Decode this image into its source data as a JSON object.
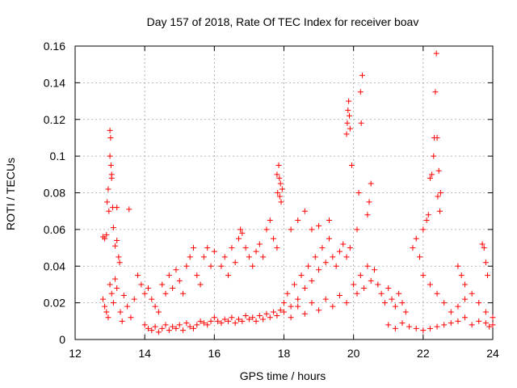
{
  "chart_data": {
    "type": "scatter",
    "title": "Day 157 of 2018, Rate Of TEC Index for receiver boav",
    "xlabel": "GPS time / hours",
    "ylabel": "ROTI / TECUs",
    "xlim": [
      12,
      24
    ],
    "ylim": [
      0,
      0.16
    ],
    "xticks": [
      12,
      14,
      16,
      18,
      20,
      22,
      24
    ],
    "xtick_labels": [
      "12",
      "14",
      "16",
      "18",
      "20",
      "22",
      "24"
    ],
    "yticks": [
      0,
      0.02,
      0.04,
      0.06,
      0.08,
      0.1,
      0.12,
      0.14,
      0.16
    ],
    "ytick_labels": [
      "0",
      "0.02",
      "0.04",
      "0.06",
      "0.08",
      "0.1",
      "0.12",
      "0.14",
      "0.16"
    ],
    "grid": true,
    "marker": "+",
    "color": "#ff0000",
    "series": [
      {
        "name": "ROTI",
        "points": [
          [
            12.8,
            0.056
          ],
          [
            12.85,
            0.055
          ],
          [
            12.9,
            0.057
          ],
          [
            12.92,
            0.075
          ],
          [
            12.95,
            0.082
          ],
          [
            12.97,
            0.07
          ],
          [
            13.0,
            0.1
          ],
          [
            13.0,
            0.114
          ],
          [
            13.02,
            0.11
          ],
          [
            13.03,
            0.095
          ],
          [
            13.05,
            0.09
          ],
          [
            13.08,
            0.072
          ],
          [
            13.1,
            0.061
          ],
          [
            13.15,
            0.051
          ],
          [
            13.2,
            0.054
          ],
          [
            13.25,
            0.045
          ],
          [
            13.28,
            0.042
          ],
          [
            13.2,
            0.072
          ],
          [
            13.55,
            0.071
          ],
          [
            13.05,
            0.088
          ],
          [
            12.8,
            0.022
          ],
          [
            12.85,
            0.018
          ],
          [
            12.9,
            0.015
          ],
          [
            12.95,
            0.012
          ],
          [
            13.0,
            0.03
          ],
          [
            13.05,
            0.025
          ],
          [
            13.1,
            0.02
          ],
          [
            13.15,
            0.033
          ],
          [
            13.2,
            0.028
          ],
          [
            13.3,
            0.015
          ],
          [
            13.35,
            0.01
          ],
          [
            13.4,
            0.024
          ],
          [
            13.5,
            0.018
          ],
          [
            13.6,
            0.012
          ],
          [
            13.7,
            0.022
          ],
          [
            13.8,
            0.035
          ],
          [
            13.9,
            0.03
          ],
          [
            14.0,
            0.025
          ],
          [
            14.1,
            0.028
          ],
          [
            14.2,
            0.022
          ],
          [
            14.3,
            0.018
          ],
          [
            14.4,
            0.015
          ],
          [
            14.5,
            0.03
          ],
          [
            14.6,
            0.025
          ],
          [
            14.7,
            0.035
          ],
          [
            14.8,
            0.028
          ],
          [
            14.9,
            0.038
          ],
          [
            15.0,
            0.032
          ],
          [
            15.1,
            0.025
          ],
          [
            15.2,
            0.04
          ],
          [
            15.3,
            0.045
          ],
          [
            15.4,
            0.05
          ],
          [
            15.5,
            0.035
          ],
          [
            15.6,
            0.03
          ],
          [
            15.7,
            0.045
          ],
          [
            15.8,
            0.05
          ],
          [
            15.9,
            0.04
          ],
          [
            16.0,
            0.048
          ],
          [
            14.0,
            0.008
          ],
          [
            14.1,
            0.006
          ],
          [
            14.2,
            0.005
          ],
          [
            14.3,
            0.007
          ],
          [
            14.4,
            0.004
          ],
          [
            14.5,
            0.006
          ],
          [
            14.6,
            0.008
          ],
          [
            14.7,
            0.005
          ],
          [
            14.8,
            0.007
          ],
          [
            14.9,
            0.006
          ],
          [
            15.0,
            0.008
          ],
          [
            15.1,
            0.005
          ],
          [
            15.2,
            0.009
          ],
          [
            15.3,
            0.007
          ],
          [
            15.4,
            0.006
          ],
          [
            15.5,
            0.008
          ],
          [
            15.6,
            0.01
          ],
          [
            15.7,
            0.009
          ],
          [
            15.8,
            0.008
          ],
          [
            15.9,
            0.01
          ],
          [
            16.0,
            0.012
          ],
          [
            16.1,
            0.01
          ],
          [
            16.2,
            0.009
          ],
          [
            16.3,
            0.011
          ],
          [
            16.4,
            0.01
          ],
          [
            16.5,
            0.012
          ],
          [
            16.6,
            0.009
          ],
          [
            16.7,
            0.011
          ],
          [
            16.8,
            0.01
          ],
          [
            16.9,
            0.013
          ],
          [
            17.0,
            0.011
          ],
          [
            17.1,
            0.012
          ],
          [
            17.2,
            0.01
          ],
          [
            17.3,
            0.013
          ],
          [
            17.4,
            0.011
          ],
          [
            17.5,
            0.014
          ],
          [
            17.6,
            0.012
          ],
          [
            17.7,
            0.015
          ],
          [
            17.8,
            0.013
          ],
          [
            17.9,
            0.016
          ],
          [
            16.2,
            0.04
          ],
          [
            16.3,
            0.045
          ],
          [
            16.4,
            0.035
          ],
          [
            16.5,
            0.05
          ],
          [
            16.6,
            0.042
          ],
          [
            16.7,
            0.055
          ],
          [
            16.75,
            0.06
          ],
          [
            16.8,
            0.058
          ],
          [
            16.9,
            0.05
          ],
          [
            17.0,
            0.045
          ],
          [
            17.1,
            0.04
          ],
          [
            17.2,
            0.048
          ],
          [
            17.3,
            0.052
          ],
          [
            17.4,
            0.045
          ],
          [
            17.5,
            0.06
          ],
          [
            17.6,
            0.065
          ],
          [
            17.7,
            0.055
          ],
          [
            17.8,
            0.05
          ],
          [
            17.8,
            0.09
          ],
          [
            17.85,
            0.095
          ],
          [
            17.9,
            0.085
          ],
          [
            17.82,
            0.08
          ],
          [
            17.88,
            0.078
          ],
          [
            17.92,
            0.075
          ],
          [
            17.87,
            0.088
          ],
          [
            17.95,
            0.082
          ],
          [
            18.0,
            0.02
          ],
          [
            18.1,
            0.025
          ],
          [
            18.2,
            0.018
          ],
          [
            18.3,
            0.03
          ],
          [
            18.4,
            0.022
          ],
          [
            18.5,
            0.035
          ],
          [
            18.6,
            0.028
          ],
          [
            18.7,
            0.04
          ],
          [
            18.8,
            0.032
          ],
          [
            18.9,
            0.045
          ],
          [
            19.0,
            0.038
          ],
          [
            19.1,
            0.05
          ],
          [
            19.2,
            0.042
          ],
          [
            19.3,
            0.055
          ],
          [
            19.4,
            0.045
          ],
          [
            19.5,
            0.04
          ],
          [
            19.6,
            0.048
          ],
          [
            19.7,
            0.052
          ],
          [
            19.8,
            0.045
          ],
          [
            19.9,
            0.05
          ],
          [
            18.2,
            0.06
          ],
          [
            18.4,
            0.065
          ],
          [
            18.6,
            0.07
          ],
          [
            18.8,
            0.06
          ],
          [
            19.0,
            0.062
          ],
          [
            19.3,
            0.065
          ],
          [
            18.0,
            0.015
          ],
          [
            18.2,
            0.012
          ],
          [
            18.4,
            0.018
          ],
          [
            18.6,
            0.014
          ],
          [
            18.8,
            0.02
          ],
          [
            19.0,
            0.016
          ],
          [
            19.2,
            0.022
          ],
          [
            19.4,
            0.018
          ],
          [
            19.6,
            0.024
          ],
          [
            19.8,
            0.02
          ],
          [
            19.8,
            0.112
          ],
          [
            19.82,
            0.118
          ],
          [
            19.84,
            0.125
          ],
          [
            19.86,
            0.13
          ],
          [
            19.88,
            0.122
          ],
          [
            19.9,
            0.115
          ],
          [
            19.95,
            0.095
          ],
          [
            20.2,
            0.135
          ],
          [
            20.25,
            0.144
          ],
          [
            20.22,
            0.118
          ],
          [
            20.15,
            0.08
          ],
          [
            20.5,
            0.085
          ],
          [
            20.45,
            0.075
          ],
          [
            20.4,
            0.068
          ],
          [
            20.1,
            0.06
          ],
          [
            20.0,
            0.03
          ],
          [
            20.1,
            0.025
          ],
          [
            20.2,
            0.035
          ],
          [
            20.3,
            0.028
          ],
          [
            20.4,
            0.04
          ],
          [
            20.5,
            0.032
          ],
          [
            20.6,
            0.038
          ],
          [
            20.7,
            0.03
          ],
          [
            20.8,
            0.025
          ],
          [
            20.9,
            0.02
          ],
          [
            21.0,
            0.028
          ],
          [
            21.1,
            0.022
          ],
          [
            21.2,
            0.018
          ],
          [
            21.3,
            0.025
          ],
          [
            21.4,
            0.02
          ],
          [
            21.5,
            0.015
          ],
          [
            21.0,
            0.008
          ],
          [
            21.2,
            0.006
          ],
          [
            21.4,
            0.009
          ],
          [
            21.6,
            0.007
          ],
          [
            21.8,
            0.006
          ],
          [
            22.0,
            0.005
          ],
          [
            22.2,
            0.006
          ],
          [
            22.4,
            0.007
          ],
          [
            22.6,
            0.008
          ],
          [
            22.8,
            0.009
          ],
          [
            21.7,
            0.05
          ],
          [
            21.8,
            0.055
          ],
          [
            21.9,
            0.045
          ],
          [
            22.0,
            0.06
          ],
          [
            22.1,
            0.065
          ],
          [
            22.15,
            0.068
          ],
          [
            22.2,
            0.088
          ],
          [
            22.25,
            0.09
          ],
          [
            22.3,
            0.1
          ],
          [
            22.32,
            0.11
          ],
          [
            22.35,
            0.135
          ],
          [
            22.38,
            0.156
          ],
          [
            22.4,
            0.11
          ],
          [
            22.45,
            0.092
          ],
          [
            22.5,
            0.08
          ],
          [
            22.42,
            0.078
          ],
          [
            22.48,
            0.07
          ],
          [
            22.0,
            0.035
          ],
          [
            22.2,
            0.03
          ],
          [
            22.4,
            0.025
          ],
          [
            22.6,
            0.02
          ],
          [
            22.8,
            0.015
          ],
          [
            23.0,
            0.018
          ],
          [
            23.2,
            0.022
          ],
          [
            23.4,
            0.025
          ],
          [
            23.6,
            0.02
          ],
          [
            23.8,
            0.015
          ],
          [
            24.0,
            0.012
          ],
          [
            23.0,
            0.04
          ],
          [
            23.1,
            0.035
          ],
          [
            23.2,
            0.03
          ],
          [
            23.7,
            0.052
          ],
          [
            23.75,
            0.05
          ],
          [
            23.8,
            0.042
          ],
          [
            23.85,
            0.035
          ],
          [
            23.0,
            0.01
          ],
          [
            23.2,
            0.012
          ],
          [
            23.4,
            0.008
          ],
          [
            23.6,
            0.01
          ],
          [
            23.8,
            0.009
          ],
          [
            23.9,
            0.007
          ],
          [
            24.0,
            0.008
          ]
        ]
      }
    ]
  }
}
